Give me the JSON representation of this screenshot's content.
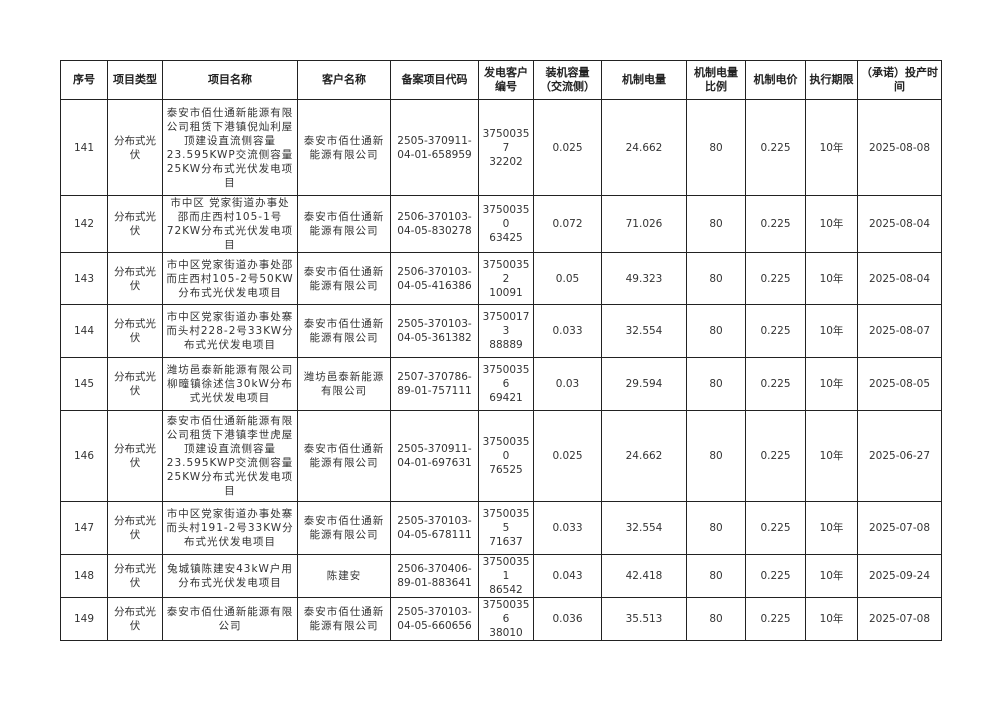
{
  "headers": [
    "序号",
    "项目类型",
    "项目名称",
    "客户名称",
    "备案项目代码",
    "发电客户编号",
    "装机容量（交流侧）",
    "机制电量",
    "机制电量比例",
    "机制电价",
    "执行期限",
    "（承诺）投产时间"
  ],
  "rows": [
    {
      "no": "141",
      "type": "分布式光伏",
      "name": "泰安市佰仕通新能源有限公司租赁下港镇倪灿利屋顶建设直流侧容量23.595KWP交流侧容量25KW分布式光伏发电项目",
      "customer": "泰安市佰仕通新能源有限公司",
      "code": "2505-370911-04-01-658959",
      "cust_no": "3750035732202",
      "capacity": "0.025",
      "energy": "24.662",
      "ratio": "80",
      "price": "0.225",
      "term": "10年",
      "date": "2025-08-08"
    },
    {
      "no": "142",
      "type": "分布式光伏",
      "name": "市中区 党家街道办事处邵而庄西村105-1号72KW分布式光伏发电项目",
      "customer": "泰安市佰仕通新能源有限公司",
      "code": "2506-370103-04-05-830278",
      "cust_no": "3750035063425",
      "capacity": "0.072",
      "energy": "71.026",
      "ratio": "80",
      "price": "0.225",
      "term": "10年",
      "date": "2025-08-04"
    },
    {
      "no": "143",
      "type": "分布式光伏",
      "name": "市中区党家街道办事处邵而庄西村105-2号50KW分布式光伏发电项目",
      "customer": "泰安市佰仕通新能源有限公司",
      "code": "2506-370103-04-05-416386",
      "cust_no": "3750035210091",
      "capacity": "0.05",
      "energy": "49.323",
      "ratio": "80",
      "price": "0.225",
      "term": "10年",
      "date": "2025-08-04"
    },
    {
      "no": "144",
      "type": "分布式光伏",
      "name": "市中区党家街道办事处寨而头村228-2号33KW分布式光伏发电项目",
      "customer": "泰安市佰仕通新能源有限公司",
      "code": "2505-370103-04-05-361382",
      "cust_no": "3750017388889",
      "capacity": "0.033",
      "energy": "32.554",
      "ratio": "80",
      "price": "0.225",
      "term": "10年",
      "date": "2025-08-07"
    },
    {
      "no": "145",
      "type": "分布式光伏",
      "name": "潍坊邑泰新能源有限公司柳疃镇徐述信30kW分布式光伏发电项目",
      "customer": "潍坊邑泰新能源有限公司",
      "code": "2507-370786-89-01-757111",
      "cust_no": "3750035669421",
      "capacity": "0.03",
      "energy": "29.594",
      "ratio": "80",
      "price": "0.225",
      "term": "10年",
      "date": "2025-08-05"
    },
    {
      "no": "146",
      "type": "分布式光伏",
      "name": "泰安市佰仕通新能源有限公司租赁下港镇李世虎屋顶建设直流侧容量23.595KWP交流侧容量25KW分布式光伏发电项目",
      "customer": "泰安市佰仕通新能源有限公司",
      "code": "2505-370911-04-01-697631",
      "cust_no": "3750035076525",
      "capacity": "0.025",
      "energy": "24.662",
      "ratio": "80",
      "price": "0.225",
      "term": "10年",
      "date": "2025-06-27"
    },
    {
      "no": "147",
      "type": "分布式光伏",
      "name": "市中区党家街道办事处寨而头村191-2号33KW分布式光伏发电项目",
      "customer": "泰安市佰仕通新能源有限公司",
      "code": "2505-370103-04-05-678111",
      "cust_no": "3750035571637",
      "capacity": "0.033",
      "energy": "32.554",
      "ratio": "80",
      "price": "0.225",
      "term": "10年",
      "date": "2025-07-08"
    },
    {
      "no": "148",
      "type": "分布式光伏",
      "name": "兔城镇陈建安43kW户用分布式光伏发电项目",
      "customer": "陈建安",
      "code": "2506-370406-89-01-883641",
      "cust_no": "3750035186542",
      "capacity": "0.043",
      "energy": "42.418",
      "ratio": "80",
      "price": "0.225",
      "term": "10年",
      "date": "2025-09-24"
    },
    {
      "no": "149",
      "type": "分布式光伏",
      "name": "泰安市佰仕通新能源有限公司",
      "customer": "泰安市佰仕通新能源有限公司",
      "code": "2505-370103-04-05-660656",
      "cust_no": "3750035638010",
      "capacity": "0.036",
      "energy": "35.513",
      "ratio": "80",
      "price": "0.225",
      "term": "10年",
      "date": "2025-07-08"
    }
  ]
}
